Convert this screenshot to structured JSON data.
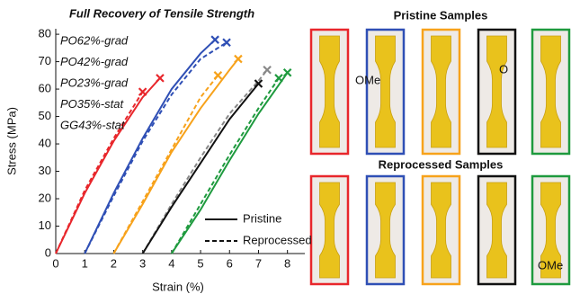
{
  "chart_data": {
    "type": "line",
    "title": "Full Recovery of Tensile Strength",
    "x_label": "Strain (%)",
    "y_label": "Stress (MPa)",
    "xlim": [
      0,
      8.6
    ],
    "ylim": [
      0,
      82
    ],
    "xticks": [
      0,
      1,
      2,
      3,
      4,
      5,
      6,
      7,
      8
    ],
    "yticks": [
      0,
      10,
      20,
      30,
      40,
      50,
      60,
      70,
      80
    ],
    "line_styles": [
      "Pristine",
      "Reprocessed"
    ],
    "series": [
      {
        "name": "PO62%-grad",
        "color": "#e8262b",
        "reprocessed_color": "#e8262b",
        "pristine": {
          "x": [
            0,
            1,
            2,
            3,
            3.6
          ],
          "y": [
            0,
            22,
            41,
            57,
            64
          ]
        },
        "reprocessed": {
          "x": [
            0,
            1,
            2,
            3
          ],
          "y": [
            0,
            23,
            42,
            59
          ]
        }
      },
      {
        "name": "PO42%-grad",
        "color": "#2f4fb5",
        "reprocessed_color": "#2f4fb5",
        "pristine": {
          "x": [
            1,
            2,
            3,
            4,
            5,
            5.5
          ],
          "y": [
            0,
            22,
            42,
            60,
            73,
            78
          ]
        },
        "reprocessed": {
          "x": [
            1,
            2,
            3,
            4,
            5,
            5.9
          ],
          "y": [
            0,
            21,
            41,
            58,
            71,
            77
          ]
        }
      },
      {
        "name": "PO23%-grad",
        "color": "#f7a21b",
        "reprocessed_color": "#f7a21b",
        "pristine": {
          "x": [
            2,
            3,
            4,
            5,
            6,
            6.3
          ],
          "y": [
            0,
            18,
            37,
            53,
            67,
            71
          ]
        },
        "reprocessed": {
          "x": [
            2,
            3,
            4,
            5,
            5.6
          ],
          "y": [
            0,
            19,
            38,
            57,
            65
          ]
        }
      },
      {
        "name": "PO35%-stat",
        "color": "#111111",
        "reprocessed_color": "#888888",
        "pristine": {
          "x": [
            3,
            4,
            5,
            6,
            7
          ],
          "y": [
            0,
            17,
            33,
            49,
            62
          ]
        },
        "reprocessed": {
          "x": [
            3,
            4,
            5,
            6,
            7,
            7.3
          ],
          "y": [
            0,
            18,
            35,
            51,
            63,
            67
          ]
        }
      },
      {
        "name": "GG43%-stat",
        "color": "#1e9a3e",
        "reprocessed_color": "#1e9a3e",
        "pristine": {
          "x": [
            4,
            5,
            6,
            7,
            8
          ],
          "y": [
            0,
            16,
            34,
            51,
            66
          ]
        },
        "reprocessed": {
          "x": [
            4,
            5,
            6,
            7,
            7.7
          ],
          "y": [
            0,
            18,
            36,
            53,
            64
          ]
        }
      }
    ]
  },
  "photos": {
    "pristine_title": "Pristine Samples",
    "reprocessed_title": "Reprocessed Samples",
    "pristine_labels": [
      "OMe",
      "O"
    ],
    "reprocessed_labels": [
      "OMe"
    ]
  }
}
